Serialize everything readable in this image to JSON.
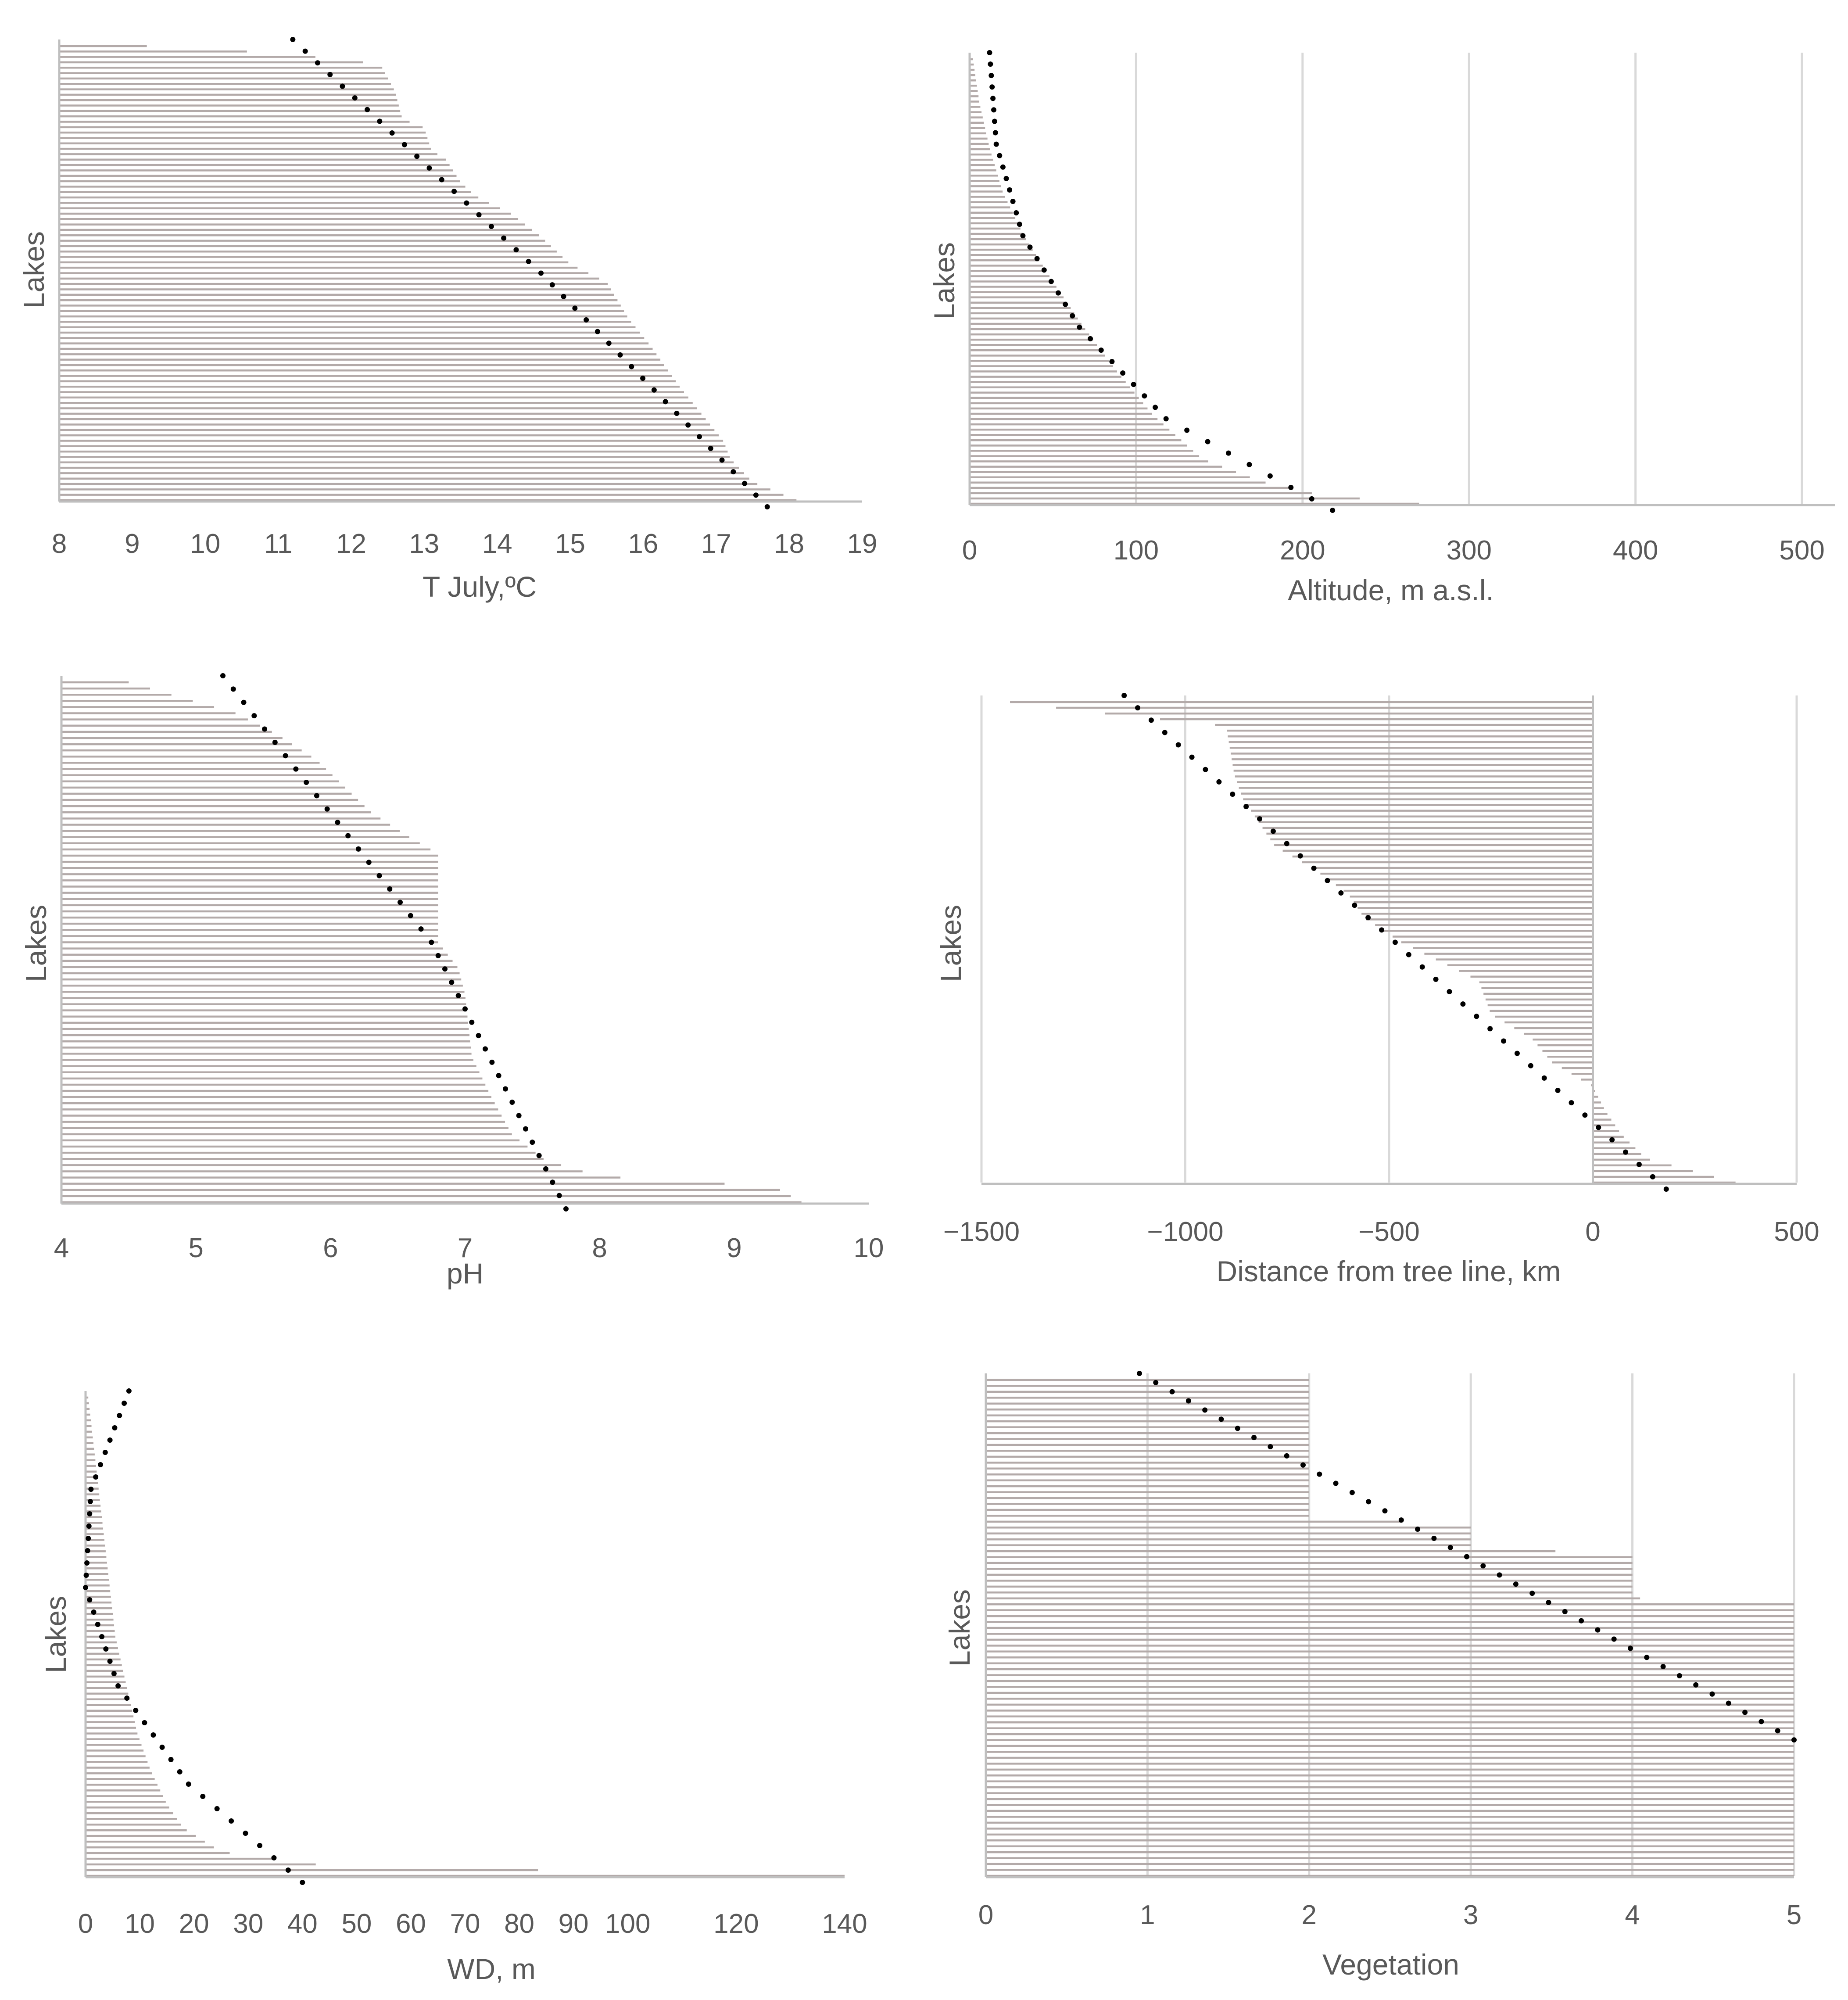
{
  "colors": {
    "bars": "#b3aaa9",
    "trend": "#000000",
    "text": "#595959",
    "grid": "#d9d9d9"
  },
  "chart_data": [
    {
      "id": "tjuly",
      "type": "bar",
      "orientation": "horizontal",
      "title": "",
      "xlabel": "T July,ºC",
      "ylabel": "Lakes",
      "xlim": [
        8,
        19
      ],
      "ticks": [
        8,
        9,
        10,
        11,
        12,
        13,
        14,
        15,
        16,
        17,
        18,
        19
      ],
      "tick_labels": [
        "8",
        "9",
        "10",
        "11",
        "12",
        "13",
        "14",
        "15",
        "16",
        "17",
        "18",
        "19"
      ],
      "gridlines": false,
      "profile": [
        [
          0,
          9.2
        ],
        [
          0.01,
          10.4
        ],
        [
          0.02,
          11.3
        ],
        [
          0.04,
          12.4
        ],
        [
          0.07,
          12.5
        ],
        [
          0.1,
          12.6
        ],
        [
          0.16,
          12.7
        ],
        [
          0.18,
          13.0
        ],
        [
          0.23,
          13.1
        ],
        [
          0.25,
          13.3
        ],
        [
          0.3,
          13.5
        ],
        [
          0.33,
          13.7
        ],
        [
          0.37,
          14.2
        ],
        [
          0.42,
          14.6
        ],
        [
          0.48,
          15.0
        ],
        [
          0.52,
          15.5
        ],
        [
          0.6,
          15.8
        ],
        [
          0.66,
          16.1
        ],
        [
          0.75,
          16.5
        ],
        [
          0.83,
          16.9
        ],
        [
          0.87,
          17.1
        ],
        [
          0.91,
          17.2
        ],
        [
          0.96,
          17.5
        ],
        [
          1.0,
          18.1
        ]
      ],
      "trend": [
        [
          0,
          11.2
        ],
        [
          0.5,
          14.6
        ],
        [
          1.0,
          17.7
        ]
      ]
    },
    {
      "id": "altitude",
      "type": "bar",
      "orientation": "horizontal",
      "title": "",
      "xlabel": "Altitude, m a.s.l.",
      "ylabel": "Lakes",
      "xlim": [
        0,
        520
      ],
      "ticks": [
        0,
        100,
        200,
        300,
        400,
        500
      ],
      "tick_labels": [
        "0",
        "100",
        "200",
        "300",
        "400",
        "500"
      ],
      "gridlines": true,
      "profile": [
        [
          0,
          2
        ],
        [
          0.1,
          6
        ],
        [
          0.2,
          12
        ],
        [
          0.3,
          20
        ],
        [
          0.4,
          33
        ],
        [
          0.5,
          50
        ],
        [
          0.6,
          68
        ],
        [
          0.7,
          88
        ],
        [
          0.8,
          110
        ],
        [
          0.9,
          140
        ],
        [
          0.95,
          175
        ],
        [
          0.98,
          210
        ],
        [
          1.0,
          270
        ]
      ],
      "trend": [
        [
          0,
          12
        ],
        [
          0.2,
          16
        ],
        [
          0.4,
          32
        ],
        [
          0.6,
          66
        ],
        [
          0.8,
          118
        ],
        [
          1.0,
          218
        ]
      ]
    },
    {
      "id": "ph",
      "type": "bar",
      "orientation": "horizontal",
      "title": "",
      "xlabel": "pH",
      "ylabel": "Lakes",
      "xlim": [
        4,
        10
      ],
      "ticks": [
        4,
        5,
        6,
        7,
        8,
        9,
        10
      ],
      "tick_labels": [
        "4",
        "5",
        "6",
        "7",
        "8",
        "9",
        "10"
      ],
      "gridlines": false,
      "profile": [
        [
          0,
          4.5
        ],
        [
          0.03,
          4.9
        ],
        [
          0.06,
          5.3
        ],
        [
          0.1,
          5.6
        ],
        [
          0.15,
          5.9
        ],
        [
          0.2,
          6.1
        ],
        [
          0.25,
          6.3
        ],
        [
          0.3,
          6.6
        ],
        [
          0.33,
          6.8
        ],
        [
          0.5,
          6.8
        ],
        [
          0.55,
          6.95
        ],
        [
          0.6,
          7.0
        ],
        [
          0.72,
          7.05
        ],
        [
          0.8,
          7.2
        ],
        [
          0.87,
          7.35
        ],
        [
          0.92,
          7.6
        ],
        [
          0.95,
          8.0
        ],
        [
          0.97,
          9.3
        ],
        [
          1.0,
          9.5
        ]
      ],
      "trend": [
        [
          0,
          5.2
        ],
        [
          0.5,
          6.75
        ],
        [
          1.0,
          7.75
        ]
      ]
    },
    {
      "id": "distance",
      "type": "bar",
      "orientation": "horizontal",
      "title": "",
      "xlabel": "Distance from tree line, km",
      "ylabel": "Lakes",
      "xlim": [
        -1500,
        500
      ],
      "ticks": [
        -1500,
        -1000,
        -500,
        0,
        500
      ],
      "tick_labels": [
        "−1500",
        "−1000",
        "−500",
        "0",
        "500"
      ],
      "gridlines": true,
      "baseline": 0,
      "profile": [
        [
          0,
          -1430
        ],
        [
          0.02,
          -1240
        ],
        [
          0.05,
          -900
        ],
        [
          0.15,
          -880
        ],
        [
          0.2,
          -860
        ],
        [
          0.25,
          -820
        ],
        [
          0.3,
          -780
        ],
        [
          0.35,
          -680
        ],
        [
          0.4,
          -600
        ],
        [
          0.45,
          -560
        ],
        [
          0.5,
          -470
        ],
        [
          0.58,
          -280
        ],
        [
          0.65,
          -250
        ],
        [
          0.7,
          -150
        ],
        [
          0.75,
          -100
        ],
        [
          0.8,
          0
        ],
        [
          0.85,
          30
        ],
        [
          0.9,
          70
        ],
        [
          0.95,
          130
        ],
        [
          1.0,
          350
        ]
      ],
      "trend": [
        [
          0,
          -1150
        ],
        [
          1.0,
          180
        ]
      ]
    },
    {
      "id": "wd",
      "type": "bar",
      "orientation": "horizontal",
      "title": "",
      "xlabel": "WD, m",
      "ylabel": "Lakes",
      "xlim": [
        0,
        140
      ],
      "ticks": [
        0,
        10,
        20,
        30,
        40,
        50,
        60,
        70,
        80,
        90,
        100,
        120,
        140
      ],
      "tick_labels": [
        "0",
        "10",
        "20",
        "30",
        "40",
        "50",
        "60",
        "70",
        "80",
        "90",
        "100",
        "120",
        "140"
      ],
      "gridlines": false,
      "profile": [
        [
          0,
          0.5
        ],
        [
          0.1,
          1.5
        ],
        [
          0.2,
          2.5
        ],
        [
          0.3,
          3.5
        ],
        [
          0.4,
          4.5
        ],
        [
          0.5,
          5.5
        ],
        [
          0.6,
          7.5
        ],
        [
          0.7,
          9.5
        ],
        [
          0.78,
          12
        ],
        [
          0.85,
          15
        ],
        [
          0.9,
          18
        ],
        [
          0.95,
          25
        ],
        [
          0.98,
          45
        ],
        [
          1.0,
          140
        ]
      ],
      "trend": [
        [
          0,
          8
        ],
        [
          0.2,
          1
        ],
        [
          0.4,
          0
        ],
        [
          0.6,
          6
        ],
        [
          0.8,
          19
        ],
        [
          1.0,
          40
        ]
      ]
    },
    {
      "id": "vegetation",
      "type": "bar",
      "orientation": "horizontal",
      "title": "",
      "xlabel": "Vegetation",
      "ylabel": "Lakes",
      "xlim": [
        0,
        5
      ],
      "ticks": [
        0,
        1,
        2,
        3,
        4,
        5
      ],
      "tick_labels": [
        "0",
        "1",
        "2",
        "3",
        "4",
        "5"
      ],
      "gridlines": true,
      "profile": [
        [
          0,
          2
        ],
        [
          0.28,
          2
        ],
        [
          0.29,
          3
        ],
        [
          0.34,
          3
        ],
        [
          0.35,
          4
        ],
        [
          0.44,
          4
        ],
        [
          0.45,
          5
        ],
        [
          1.0,
          5
        ]
      ],
      "trend": [
        [
          0,
          0.95
        ],
        [
          0.72,
          5.0
        ]
      ]
    }
  ]
}
